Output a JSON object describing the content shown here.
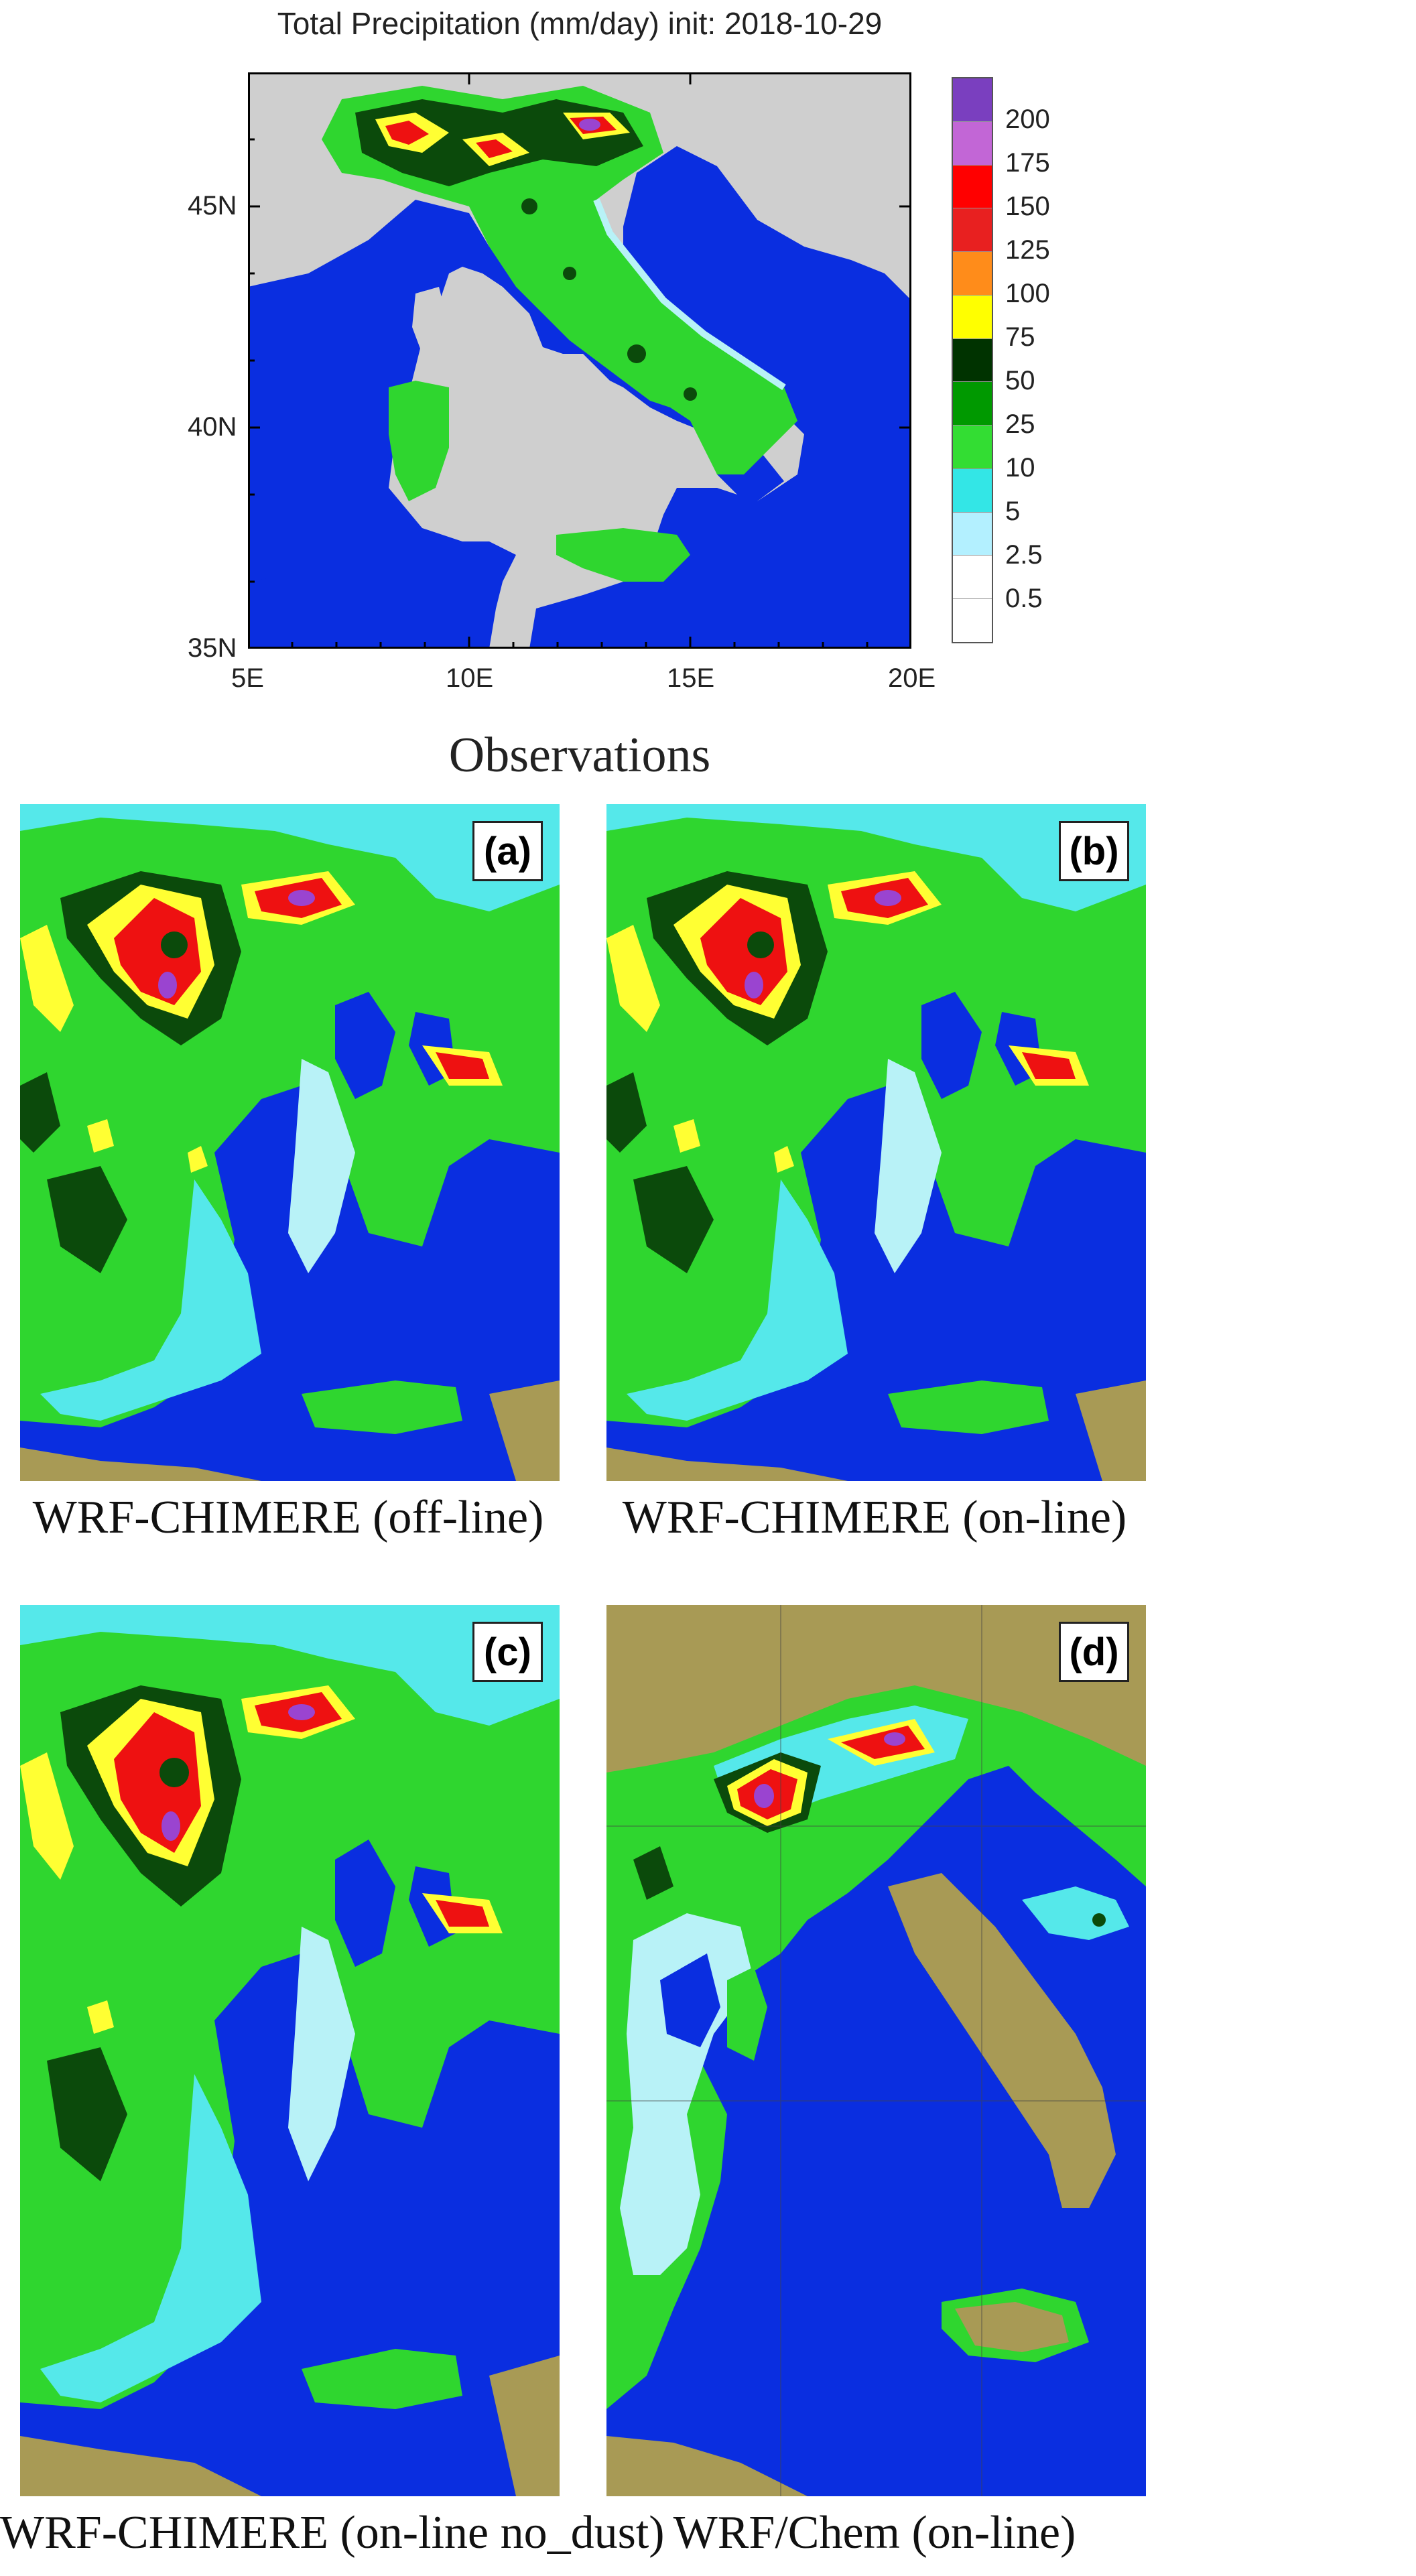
{
  "observations_map": {
    "title": "Total Precipitation (mm/day) init: 2018-10-29",
    "lat_labels": [
      "45N",
      "40N",
      "35N"
    ],
    "lon_labels": [
      "5E",
      "10E",
      "15E",
      "20E"
    ],
    "legend_levels": [
      "200",
      "175",
      "150",
      "125",
      "100",
      "75",
      "50",
      "25",
      "10",
      "5",
      "2.5",
      "0.5"
    ],
    "legend_colors": [
      "#7a3fbf",
      "#c266d6",
      "#ff0000",
      "#e82020",
      "#ff8c1a",
      "#ffff00",
      "#003300",
      "#009900",
      "#33dd33",
      "#33e6e6",
      "#b3f0ff",
      "#ffffff",
      "#ffffff"
    ],
    "caption": "Observations"
  },
  "panels": [
    {
      "badge": "(a)",
      "caption": "WRF-CHIMERE (off-line)"
    },
    {
      "badge": "(b)",
      "caption": "WRF-CHIMERE (on-line)"
    },
    {
      "badge": "(c)",
      "caption": "WRF-CHIMERE (on-line no_dust)"
    },
    {
      "badge": "(d)",
      "caption": "WRF/Chem (on-line)"
    }
  ],
  "colors": {
    "sea": "#0a2ee0",
    "land_gray": "#cfcfcf",
    "rain_green": "#2fd62f",
    "rain_dark": "#0b4a0b",
    "rain_cyan": "#55e8ea",
    "rain_light": "#b8f2f7",
    "rain_yellow": "#ffff33",
    "rain_red": "#ee1111",
    "rain_purple": "#9a44d0",
    "terrain": "#a89a55"
  }
}
